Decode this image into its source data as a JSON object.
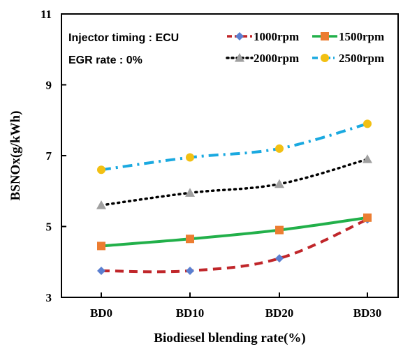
{
  "chart_data": {
    "type": "line",
    "title": "",
    "xlabel": "Biodiesel blending rate(%)",
    "ylabel": "BSNOx(g/kWh)",
    "categories": [
      "BD0",
      "BD10",
      "BD20",
      "BD30"
    ],
    "ylim": [
      3,
      11
    ],
    "yticks": [
      "3",
      "5",
      "7",
      "9",
      "11"
    ],
    "grid": false,
    "legend_placement": "top-right",
    "annotations": [
      "Injector timing : ECU",
      "EGR rate : 0%"
    ],
    "series": [
      {
        "name": "1000rpm",
        "values": [
          3.75,
          3.75,
          4.1,
          5.2
        ],
        "color": "#c0262a",
        "marker_color": "#5b7fd0",
        "marker": "diamond",
        "dash": "dashed"
      },
      {
        "name": "1500rpm",
        "values": [
          4.45,
          4.65,
          4.9,
          5.25
        ],
        "color": "#22b04a",
        "marker_color": "#ec7d31",
        "marker": "square",
        "dash": "solid"
      },
      {
        "name": "2000rpm",
        "values": [
          5.6,
          5.95,
          6.2,
          6.9
        ],
        "color": "#000000",
        "marker_color": "#a0a0a0",
        "marker": "triangle",
        "dash": "dotted"
      },
      {
        "name": "2500rpm",
        "values": [
          6.6,
          6.95,
          7.2,
          7.9
        ],
        "color": "#1aa9e0",
        "marker_color": "#f2c013",
        "marker": "circle",
        "dash": "dash-dot"
      }
    ]
  }
}
